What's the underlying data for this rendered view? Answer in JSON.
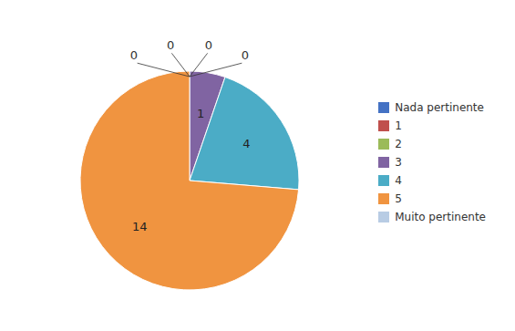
{
  "chart_data": {
    "type": "pie",
    "categories": [
      "Nada pertinente",
      "1",
      "2",
      "3",
      "4",
      "5",
      "Muito pertinente"
    ],
    "values": [
      0,
      0,
      0,
      1,
      4,
      14,
      0
    ],
    "value_labels": [
      "0",
      "0",
      "0",
      "1",
      "4",
      "14",
      "0"
    ],
    "colors": [
      "#4472C4",
      "#C0504D",
      "#9BBB59",
      "#8064A2",
      "#4BACC6",
      "#F09440",
      "#B8CCE4"
    ],
    "data_labels": true,
    "legend": "right"
  }
}
